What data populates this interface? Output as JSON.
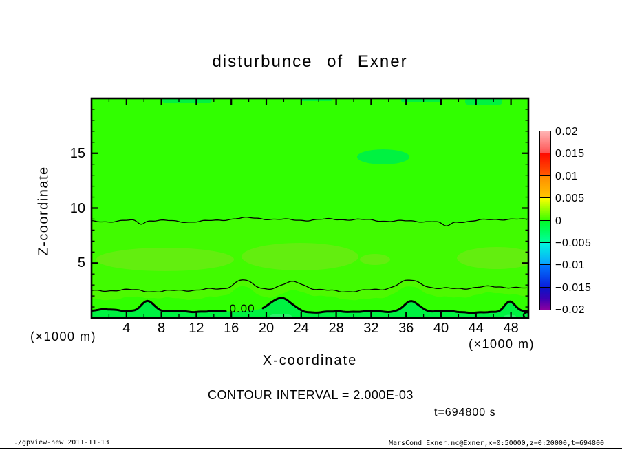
{
  "title": "disturbunce of Exner",
  "axes": {
    "xlabel": "X-coordinate",
    "ylabel": "Z-coordinate",
    "unit_left": "(×1000 m)",
    "unit_right": "(×1000 m)",
    "x_range": [
      0,
      50
    ],
    "y_range": [
      0,
      20
    ],
    "x_ticks": [
      4,
      8,
      12,
      16,
      20,
      24,
      28,
      32,
      36,
      40,
      44,
      48
    ],
    "x_minor_step": 2,
    "y_ticks": [
      5,
      10,
      15
    ],
    "y_minor_step": 1
  },
  "annotations": {
    "contour_interval": "CONTOUR INTERVAL = 2.000E-03",
    "time_label": "t=694800 s",
    "contour_label": "0.00"
  },
  "footer": {
    "left": "./gpview-new  2011-11-13",
    "right": "MarsCond_Exner.nc@Exner,x=0:50000,z=0:20000,t=694800"
  },
  "colorbar": {
    "labels": [
      "0.02",
      "0.015",
      "0.01",
      "0.005",
      "0",
      "−0.005",
      "−0.01",
      "−0.015",
      "−0.02"
    ],
    "boxes": [
      {
        "from": 0.015,
        "to": 0.02,
        "top": "#ffb4b4",
        "bottom": "#ff5050"
      },
      {
        "from": 0.01,
        "to": 0.015,
        "top": "#ff0a00",
        "bottom": "#ff5a00"
      },
      {
        "from": 0.005,
        "to": 0.01,
        "top": "#ff8c00",
        "bottom": "#ffc800"
      },
      {
        "from": 0,
        "to": 0.005,
        "top": "#fdff00",
        "mid": "#9bff00",
        "bottom": "#3cff00"
      },
      {
        "from": -0.005,
        "to": 0,
        "top": "#00fa28",
        "bottom": "#00ffa0"
      },
      {
        "from": -0.01,
        "to": -0.005,
        "top": "#00f8dc",
        "bottom": "#0aa0ff"
      },
      {
        "from": -0.015,
        "to": -0.01,
        "top": "#0078ff",
        "bottom": "#0a1edc"
      },
      {
        "from": -0.02,
        "to": -0.015,
        "top": "#0a14c8",
        "mid": "#3c00b4",
        "bottom": "#8c00a0"
      }
    ]
  },
  "chart_data": {
    "type": "contour",
    "title": "disturbunce of Exner",
    "xlabel": "X-coordinate",
    "ylabel": "Z-coordinate",
    "x_unit": "×1000 m",
    "z_unit": "×1000 m",
    "x_range_m": [
      0,
      50000
    ],
    "z_range_m": [
      0,
      20000
    ],
    "time_seconds": 694800,
    "contour_interval": 0.002,
    "colorbar_ticks": [
      0.02,
      0.015,
      0.01,
      0.005,
      0,
      -0.005,
      -0.01,
      -0.015,
      -0.02
    ],
    "contour_lines": [
      {
        "label": "0.00",
        "value": 0.0,
        "thick": true,
        "mean_z_km": 0.6
      },
      {
        "value": "thin positive contour",
        "thick": false,
        "mean_z_km": 2.6
      },
      {
        "value": "thin positive contour",
        "thick": false,
        "mean_z_km": 8.8
      }
    ],
    "field_summary": "Field is nearly uniform slightly-positive Exner disturbance (green tones near 0). A wavy zero contour (thick, labelled 0.00) runs near z=0.5-1 km with hills near x=6.5, 21.5, 36.5, 47.8; below it values are slightly negative (blue-green tone). Thin contours near z=2.6 km and z=8.8 km bound a lighter yellow-green band of higher positive values around z=4-6 km. Small slightly-negative patches touch the model top near x=10-14, 24-27, 35-40, 43-47 and a blob near x=33, z=15.",
    "tone_colors": {
      "base_green": "#31ff00",
      "band_green": "#41fb00",
      "band_light_green": "#63ee0f",
      "under_band_green": "#4ef900",
      "negative_green": "#00f241",
      "negative_teal": "#2bf26b"
    }
  }
}
